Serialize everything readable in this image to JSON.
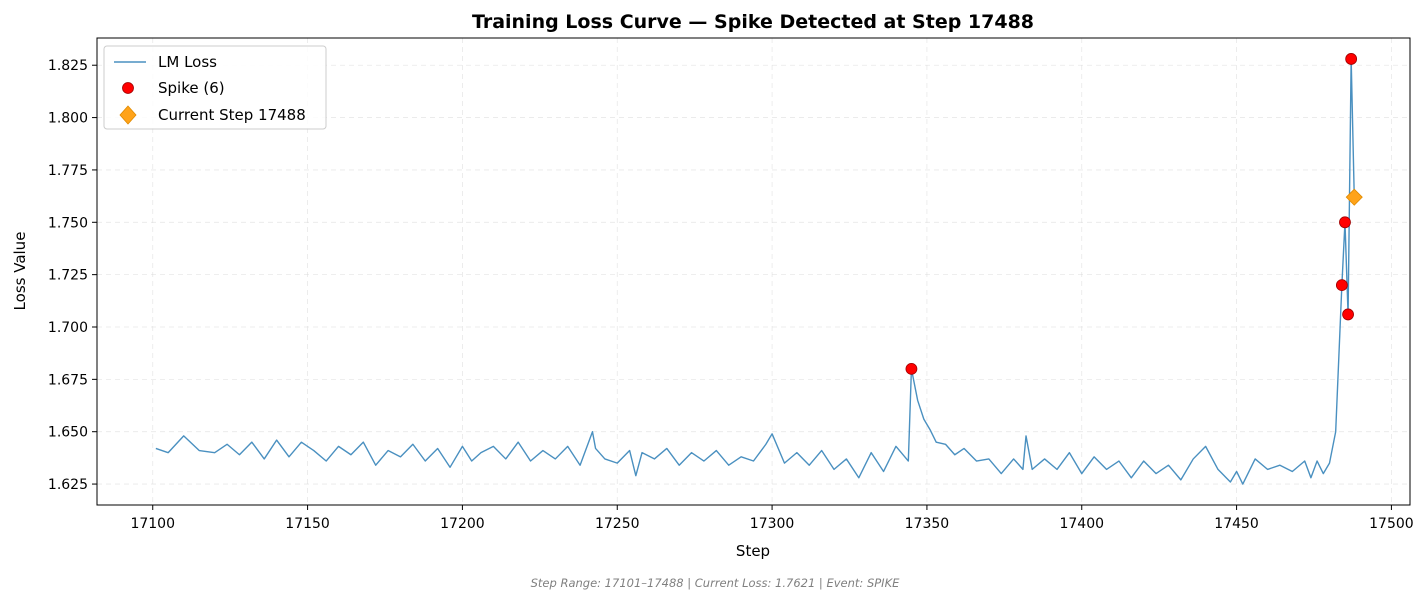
{
  "colors": {
    "line": "#4a90c0",
    "spike": "#ff0000",
    "spike_edge": "#a00000",
    "current": "#ffa319",
    "current_edge": "#e08a00"
  },
  "footer": "Step Range: 17101–17488 | Current Loss: 1.7621 | Event: SPIKE",
  "chart_data": {
    "type": "line",
    "title": "Training Loss Curve — Spike Detected at Step 17488",
    "xlabel": "Step",
    "ylabel": "Loss Value",
    "xlim": [
      17082,
      17506
    ],
    "ylim": [
      1.615,
      1.838
    ],
    "xticks": [
      17100,
      17150,
      17200,
      17250,
      17300,
      17350,
      17400,
      17450,
      17500
    ],
    "yticks": [
      1.625,
      1.65,
      1.675,
      1.7,
      1.725,
      1.75,
      1.775,
      1.8,
      1.825
    ],
    "ytick_labels": [
      "1.625",
      "1.650",
      "1.675",
      "1.700",
      "1.725",
      "1.750",
      "1.775",
      "1.800",
      "1.825"
    ],
    "grid": true,
    "legend": {
      "position": "upper-left",
      "entries": [
        "LM Loss",
        "Spike (6)",
        "Current Step 17488"
      ]
    },
    "series": [
      {
        "name": "LM Loss",
        "x": [
          17101,
          17105,
          17110,
          17115,
          17120,
          17124,
          17128,
          17132,
          17136,
          17140,
          17144,
          17148,
          17152,
          17156,
          17160,
          17164,
          17168,
          17172,
          17176,
          17180,
          17184,
          17188,
          17192,
          17196,
          17200,
          17203,
          17206,
          17210,
          17214,
          17218,
          17222,
          17226,
          17230,
          17234,
          17238,
          17242,
          17243,
          17246,
          17250,
          17254,
          17256,
          17258,
          17262,
          17266,
          17270,
          17274,
          17278,
          17282,
          17286,
          17290,
          17294,
          17298,
          17300,
          17304,
          17308,
          17312,
          17316,
          17320,
          17324,
          17328,
          17332,
          17336,
          17340,
          17344,
          17345,
          17347,
          17349,
          17351,
          17353,
          17356,
          17359,
          17362,
          17366,
          17370,
          17374,
          17378,
          17381,
          17382,
          17384,
          17388,
          17392,
          17396,
          17400,
          17404,
          17408,
          17412,
          17416,
          17420,
          17424,
          17428,
          17432,
          17436,
          17440,
          17444,
          17448,
          17450,
          17452,
          17456,
          17460,
          17464,
          17468,
          17472,
          17474,
          17476,
          17478,
          17480,
          17482,
          17484,
          17485,
          17486,
          17487,
          17488
        ],
        "values": [
          1.642,
          1.64,
          1.648,
          1.641,
          1.64,
          1.644,
          1.639,
          1.645,
          1.637,
          1.646,
          1.638,
          1.645,
          1.641,
          1.636,
          1.643,
          1.639,
          1.645,
          1.634,
          1.641,
          1.638,
          1.644,
          1.636,
          1.642,
          1.633,
          1.643,
          1.636,
          1.64,
          1.643,
          1.637,
          1.645,
          1.636,
          1.641,
          1.637,
          1.643,
          1.634,
          1.65,
          1.642,
          1.637,
          1.635,
          1.641,
          1.629,
          1.64,
          1.637,
          1.642,
          1.634,
          1.64,
          1.636,
          1.641,
          1.634,
          1.638,
          1.636,
          1.644,
          1.649,
          1.635,
          1.64,
          1.634,
          1.641,
          1.632,
          1.637,
          1.628,
          1.64,
          1.631,
          1.643,
          1.636,
          1.68,
          1.665,
          1.656,
          1.651,
          1.645,
          1.644,
          1.639,
          1.642,
          1.636,
          1.637,
          1.63,
          1.637,
          1.632,
          1.648,
          1.632,
          1.637,
          1.632,
          1.64,
          1.63,
          1.638,
          1.632,
          1.636,
          1.628,
          1.636,
          1.63,
          1.634,
          1.627,
          1.637,
          1.643,
          1.632,
          1.626,
          1.631,
          1.625,
          1.637,
          1.632,
          1.634,
          1.631,
          1.636,
          1.628,
          1.636,
          1.63,
          1.635,
          1.65,
          1.72,
          1.75,
          1.706,
          1.828,
          1.762
        ]
      }
    ],
    "spikes": {
      "name": "Spike (6)",
      "x": [
        17345,
        17484,
        17485,
        17486,
        17487
      ],
      "values": [
        1.68,
        1.72,
        1.75,
        1.706,
        1.828
      ]
    },
    "current": {
      "name": "Current Step 17488",
      "x": 17488,
      "value": 1.762
    }
  }
}
